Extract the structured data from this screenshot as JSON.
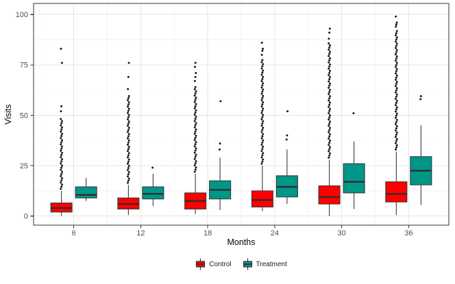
{
  "chart_data": {
    "type": "boxplot",
    "title": "",
    "xlabel": "Months",
    "ylabel": "Visits",
    "categories": [
      "6",
      "12",
      "18",
      "24",
      "30",
      "36"
    ],
    "y_ticks": [
      0,
      25,
      50,
      75,
      100
    ],
    "ylim": [
      -4.5,
      105.5
    ],
    "grid": {
      "major": true,
      "minor": true
    },
    "legend": {
      "position": "bottom",
      "entries": [
        {
          "label": "Control",
          "color": "#FF0000"
        },
        {
          "label": "Treatment",
          "color": "#009688"
        }
      ]
    },
    "series": [
      {
        "name": "Control",
        "color": "#FF0000",
        "boxes": [
          {
            "month": "6",
            "whisker_low": 0,
            "q1": 2,
            "median": 4,
            "q3": 6.5,
            "whisker_high": 12.5,
            "outlier_run": [
              13.5,
              48.5
            ],
            "outliers": [
              52,
              54.5,
              76,
              83
            ]
          },
          {
            "month": "12",
            "whisker_low": 0.5,
            "q1": 3.5,
            "median": 6,
            "q3": 9,
            "whisker_high": 15.5,
            "outlier_run": [
              16.5,
              60
            ],
            "outliers": [
              63,
              69,
              76
            ]
          },
          {
            "month": "18",
            "whisker_low": 1,
            "q1": 3.5,
            "median": 7.5,
            "q3": 11.5,
            "whisker_high": 21,
            "outlier_run": [
              22,
              64
            ],
            "outliers": [
              67,
              69,
              71,
              74,
              76
            ]
          },
          {
            "month": "24",
            "whisker_low": 2.5,
            "q1": 4.5,
            "median": 8,
            "q3": 12.5,
            "whisker_high": 25,
            "outlier_run": [
              26,
              78
            ],
            "outliers": [
              80,
              82,
              83,
              86
            ]
          },
          {
            "month": "30",
            "whisker_low": 0,
            "q1": 6,
            "median": 9.5,
            "q3": 15,
            "whisker_high": 28,
            "outlier_run": [
              29,
              86
            ],
            "outliers": [
              88,
              91,
              93
            ]
          },
          {
            "month": "36",
            "whisker_low": 0.5,
            "q1": 7,
            "median": 11,
            "q3": 17,
            "whisker_high": 32,
            "outlier_run": [
              33,
              92
            ],
            "outliers": [
              94,
              95,
              96,
              99
            ]
          }
        ]
      },
      {
        "name": "Treatment",
        "color": "#009688",
        "boxes": [
          {
            "month": "6",
            "whisker_low": 7.5,
            "q1": 9,
            "median": 10.5,
            "q3": 14.5,
            "whisker_high": 19,
            "outlier_run": [],
            "outliers": []
          },
          {
            "month": "12",
            "whisker_low": 5,
            "q1": 8.5,
            "median": 11,
            "q3": 14.5,
            "whisker_high": 21,
            "outlier_run": [],
            "outliers": [
              24
            ]
          },
          {
            "month": "18",
            "whisker_low": 3,
            "q1": 8.5,
            "median": 13,
            "q3": 17.5,
            "whisker_high": 29,
            "outlier_run": [],
            "outliers": [
              33,
              36,
              57
            ]
          },
          {
            "month": "24",
            "whisker_low": 6,
            "q1": 9.5,
            "median": 14.5,
            "q3": 20,
            "whisker_high": 33,
            "outlier_run": [],
            "outliers": [
              38,
              40,
              52
            ]
          },
          {
            "month": "30",
            "whisker_low": 3.5,
            "q1": 11.5,
            "median": 17,
            "q3": 26,
            "whisker_high": 37,
            "outlier_run": [],
            "outliers": [
              51
            ]
          },
          {
            "month": "36",
            "whisker_low": 5.5,
            "q1": 15.5,
            "median": 22.5,
            "q3": 29.5,
            "whisker_high": 45,
            "outlier_run": [],
            "outliers": [
              58,
              59.5
            ]
          }
        ]
      }
    ],
    "styles": {
      "panel_border": "#333333",
      "box_stroke": "#3A3A3A",
      "median_color": "#2E2E2E",
      "outlier_color": "#1A1A1A",
      "tick_label_color": "#4D4D4D",
      "axis_title_color": "#000000",
      "legend_text_color": "#1A1A1A",
      "grid_major": "#E4E4E4",
      "grid_minor": "#F2F2F2",
      "background": "#FFFFFF"
    }
  }
}
